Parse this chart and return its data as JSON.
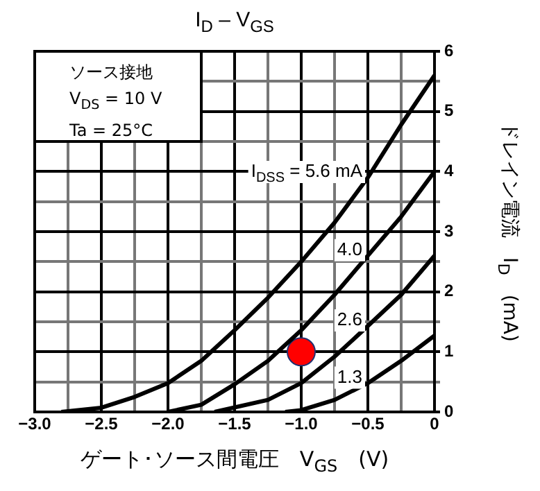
{
  "chart_data": {
    "type": "line",
    "title": "I$_{D}$ – V$_{GS}$",
    "xlabel": "ゲート･ソース間電圧　V$_{GS}$　(V)",
    "ylabel": "ドレイン電流　I$_{D}$　(mA)",
    "annotations": [
      "ソース接地",
      "V$_{DS}$ = 10 V",
      "Ta = 25°C"
    ],
    "xlim": [
      -3,
      0
    ],
    "ylim": [
      0,
      6
    ],
    "xticks": [
      {
        "value": -3,
        "label": "−3.0"
      },
      {
        "value": -2.75,
        "label": null
      },
      {
        "value": -2.5,
        "label": "−2.5"
      },
      {
        "value": -2.25,
        "label": null
      },
      {
        "value": -2,
        "label": "−2.0"
      },
      {
        "value": -1.75,
        "label": null
      },
      {
        "value": -1.5,
        "label": "−1.5"
      },
      {
        "value": -1.25,
        "label": null
      },
      {
        "value": -1,
        "label": "−1.0"
      },
      {
        "value": -0.75,
        "label": null
      },
      {
        "value": -0.5,
        "label": "−0.5"
      },
      {
        "value": -0.25,
        "label": null
      },
      {
        "value": 0,
        "label": "0"
      }
    ],
    "yticks": [
      0,
      {
        "value": 0.5,
        "label": null
      },
      1,
      {
        "value": 1.5,
        "label": null
      },
      2,
      {
        "value": 2.5,
        "label": null
      },
      3,
      {
        "value": 3.5,
        "label": null
      },
      4,
      {
        "value": 4.5,
        "label": null
      },
      5,
      {
        "value": 5.5,
        "label": null
      },
      6
    ],
    "grid": true,
    "legend": false,
    "line_style": "solid",
    "series": [
      {
        "name": "I$_{DSS}$ = 5.6 mA",
        "color": "#000000",
        "marker": "none",
        "x": [
          -2.8,
          -2.5,
          -2.25,
          -2,
          -1.75,
          -1.5,
          -1.25,
          -1,
          -0.75,
          -0.5,
          -0.25,
          0
        ],
        "values": [
          0,
          0.07,
          0.25,
          0.48,
          0.85,
          1.36,
          1.9,
          2.5,
          3.15,
          3.9,
          4.78,
          5.6
        ]
      },
      {
        "name": "4.0",
        "color": "#000000",
        "marker": "none",
        "x": [
          -2,
          -1.75,
          -1.5,
          -1.25,
          -1,
          -0.75,
          -0.5,
          -0.25,
          0
        ],
        "values": [
          0,
          0.12,
          0.46,
          0.85,
          1.36,
          1.95,
          2.6,
          3.25,
          4.0
        ]
      },
      {
        "name": "2.6",
        "color": "#000000",
        "marker": "none",
        "x": [
          -1.65,
          -1.25,
          -1,
          -0.75,
          -0.5,
          -0.25,
          0
        ],
        "values": [
          0,
          0.2,
          0.48,
          0.92,
          1.43,
          1.95,
          2.6
        ]
      },
      {
        "name": "1.3",
        "color": "#000000",
        "marker": "none",
        "x": [
          -1.12,
          -1,
          -0.75,
          -0.5,
          -0.25,
          0
        ],
        "values": [
          0,
          0.03,
          0.2,
          0.48,
          0.85,
          1.27
        ]
      },
      {
        "type": "scatter",
        "color": "#ff0000",
        "marker": "circle",
        "x": [
          -1
        ],
        "values": [
          1
        ]
      }
    ]
  }
}
